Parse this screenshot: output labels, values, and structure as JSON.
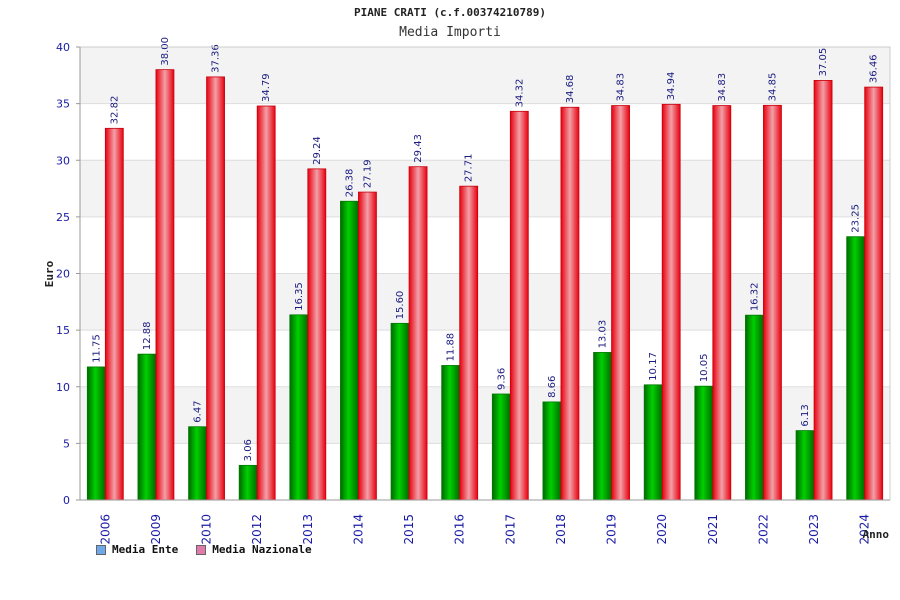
{
  "chart_data": {
    "type": "bar",
    "title": "PIANE CRATI (c.f.00374210789)",
    "subtitle": "Media Importi",
    "ylabel": "Euro",
    "xlabel": "Anno",
    "ylim": [
      0,
      40
    ],
    "yticks": [
      0,
      5,
      10,
      15,
      20,
      25,
      30,
      35,
      40
    ],
    "grid": true,
    "legend_position": "bottom-left",
    "categories": [
      "2006",
      "2009",
      "2010",
      "2012",
      "2013",
      "2014",
      "2015",
      "2016",
      "2017",
      "2018",
      "2019",
      "2020",
      "2021",
      "2022",
      "2023",
      "2024"
    ],
    "series": [
      {
        "name": "Media Ente",
        "color": "#00b000",
        "legend_color": "#6ea8e8",
        "values": [
          11.75,
          12.88,
          6.47,
          3.06,
          16.35,
          26.38,
          15.6,
          11.88,
          9.36,
          8.66,
          13.03,
          10.17,
          10.05,
          16.32,
          6.13,
          23.25
        ],
        "labels": [
          "11.75",
          "12.88",
          "6.47",
          "3.06",
          "16.35",
          "26.38",
          "15.60",
          "11.88",
          "9.36",
          "8.66",
          "13.03",
          "10.17",
          "10.05",
          "16.32",
          "6.13",
          "23.25"
        ]
      },
      {
        "name": "Media Nazionale",
        "color": "#e8000e",
        "legend_color": "#e07aa8",
        "values": [
          32.82,
          38.0,
          37.36,
          34.79,
          29.24,
          27.19,
          29.43,
          27.71,
          34.32,
          34.68,
          34.83,
          34.94,
          34.83,
          34.85,
          37.05,
          36.46
        ],
        "labels": [
          "32.82",
          "38.00",
          "37.36",
          "34.79",
          "29.24",
          "27.19",
          "29.43",
          "27.71",
          "34.32",
          "34.68",
          "34.83",
          "34.94",
          "34.83",
          "34.85",
          "37.05",
          "36.46"
        ]
      }
    ]
  }
}
